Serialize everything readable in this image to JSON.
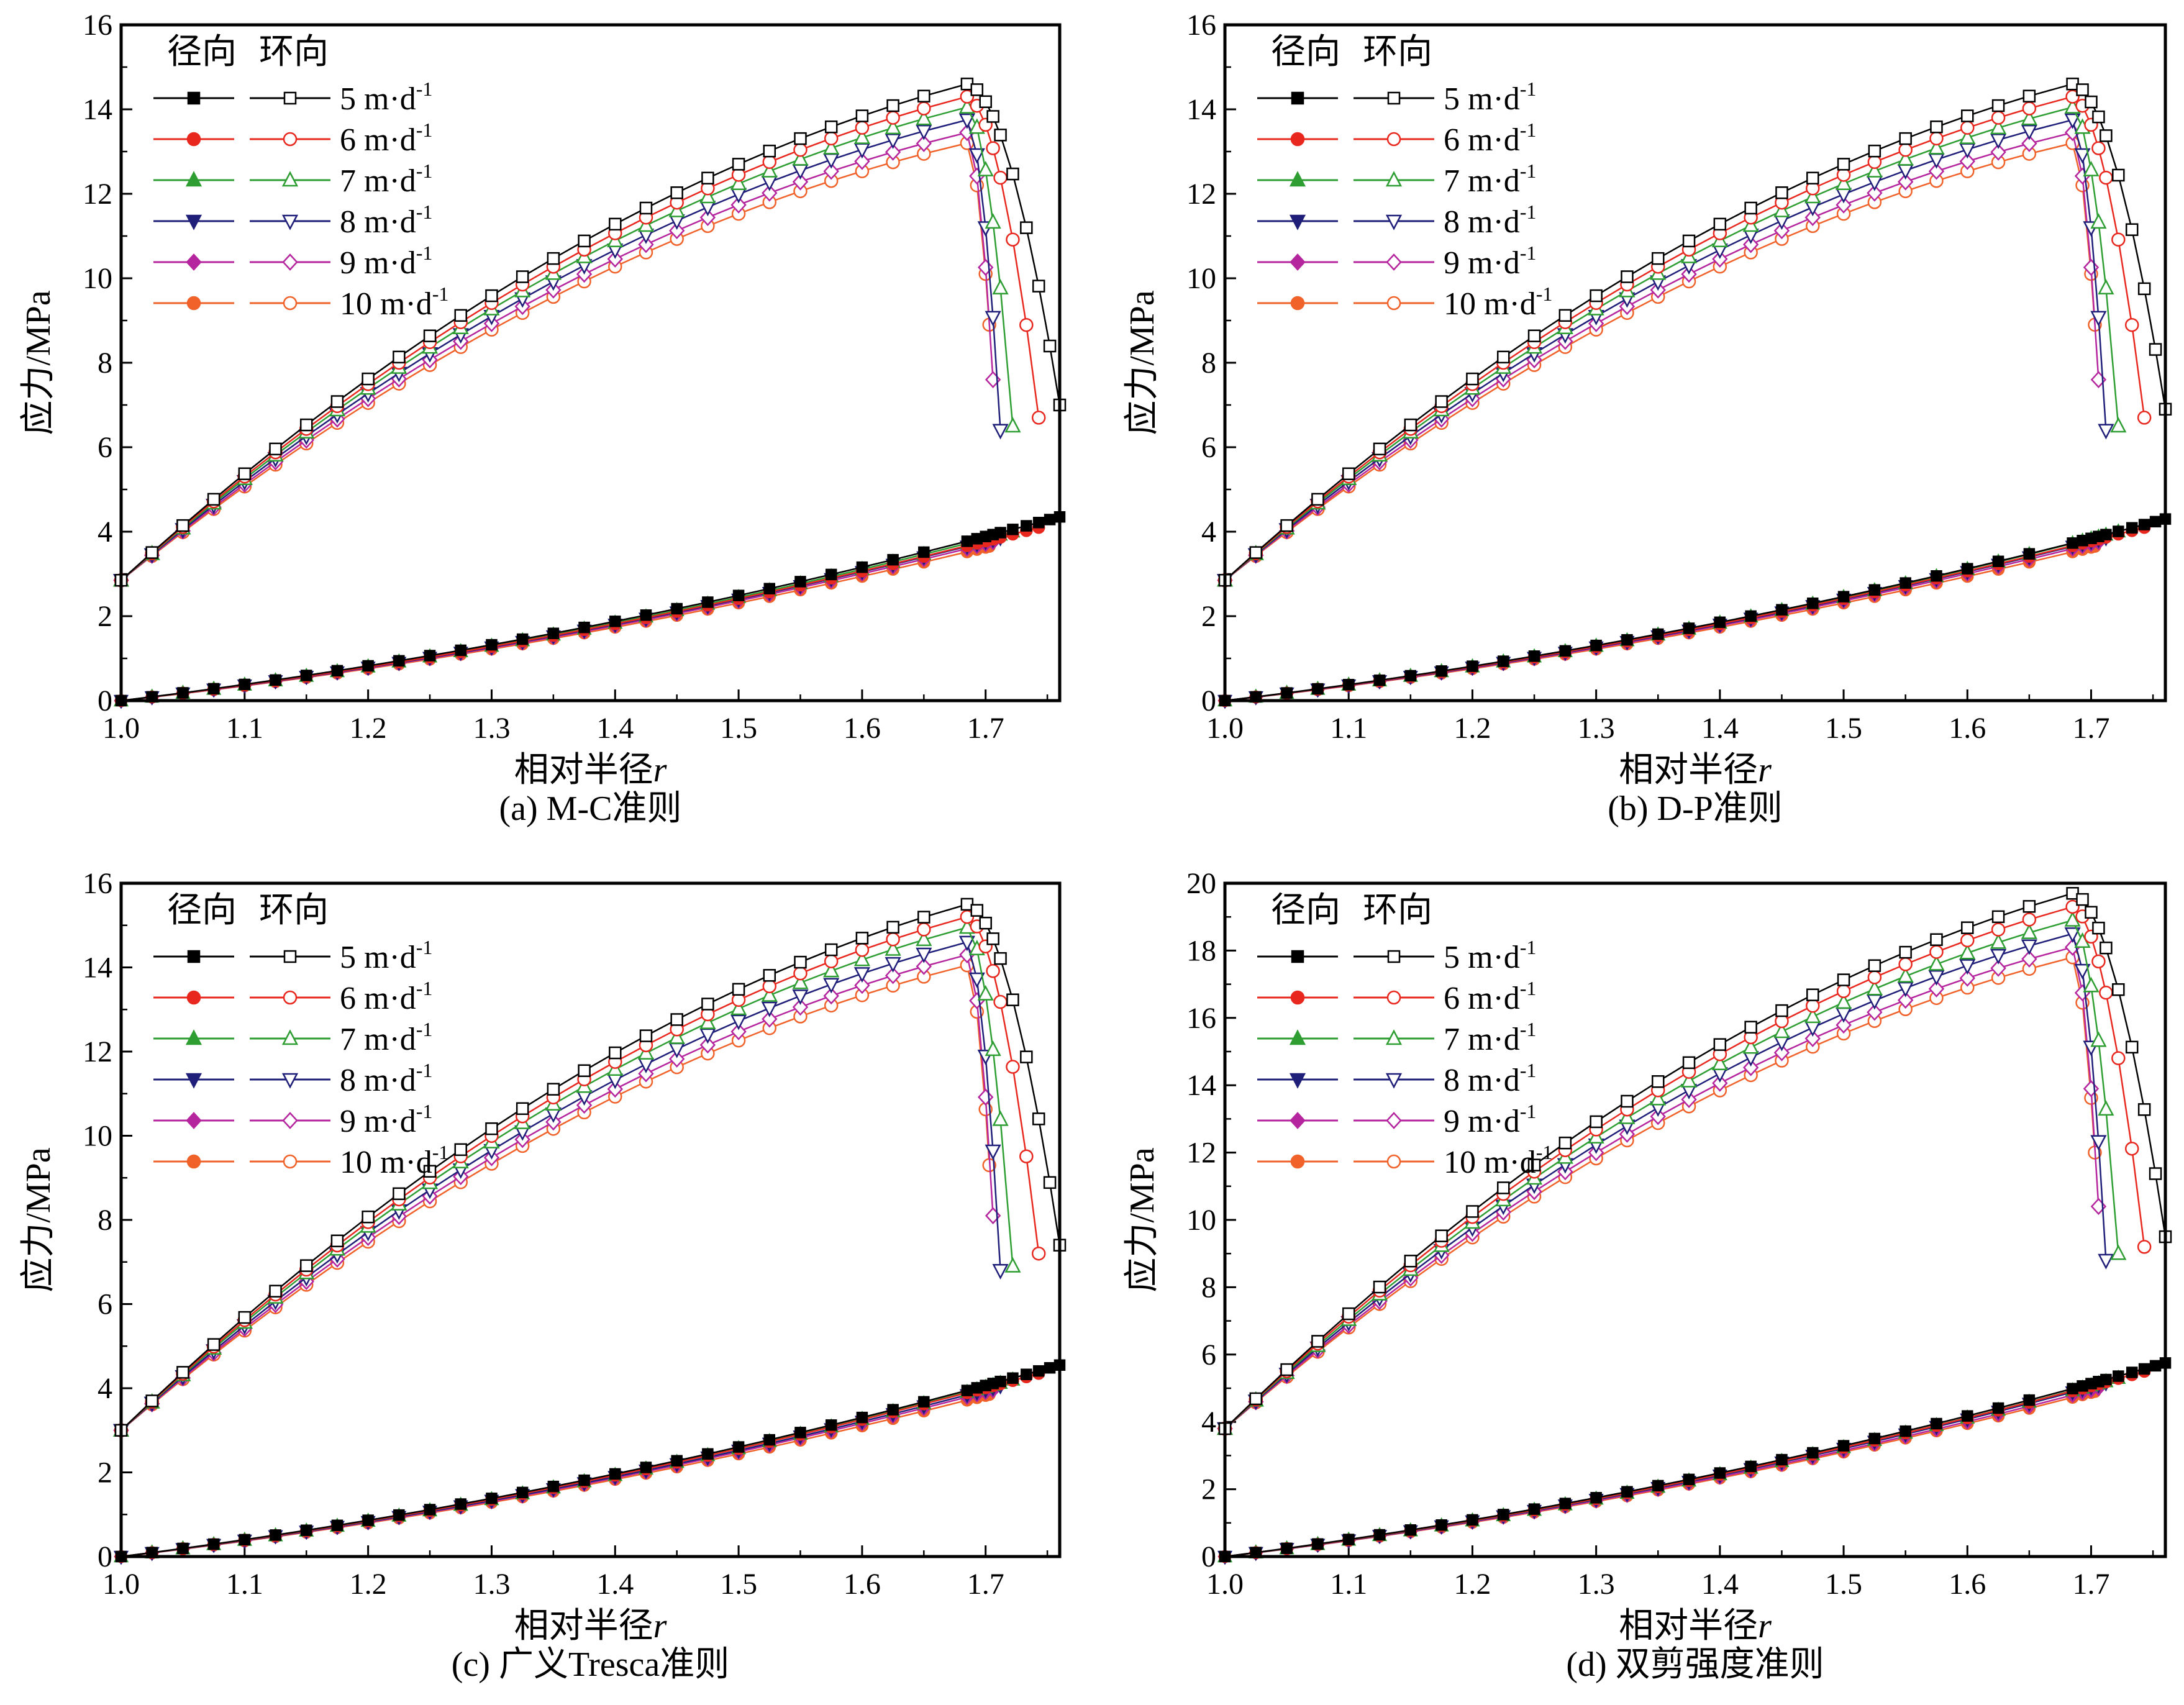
{
  "figure": {
    "legend_header": {
      "radial": "径向",
      "hoop": "环向"
    },
    "series": [
      {
        "label": "5 m·d",
        "sup": "-1",
        "color": "#000000",
        "marker": "square"
      },
      {
        "label": "6 m·d",
        "sup": "-1",
        "color": "#e8281e",
        "marker": "circle"
      },
      {
        "label": "7 m·d",
        "sup": "-1",
        "color": "#2e9e33",
        "marker": "triangle-up"
      },
      {
        "label": "8 m·d",
        "sup": "-1",
        "color": "#1f1f7a",
        "marker": "triangle-down"
      },
      {
        "label": "9 m·d",
        "sup": "-1",
        "color": "#b5259e",
        "marker": "diamond"
      },
      {
        "label": "10 m·d",
        "sup": "-1",
        "color": "#f0622a",
        "marker": "circle"
      }
    ]
  },
  "chart_data": [
    {
      "type": "line",
      "title": "(a) M-C准则",
      "xlabel": "相对半径",
      "xlabel_italic": "r",
      "ylabel": "应力/MPa",
      "xlim": [
        1.0,
        1.76
      ],
      "ylim": [
        0,
        16
      ],
      "xticks": [
        "1.0",
        "1.1",
        "1.2",
        "1.3",
        "1.4",
        "1.5",
        "1.6",
        "1.7"
      ],
      "yticks": [
        "0",
        "2",
        "4",
        "6",
        "8",
        "10",
        "12",
        "14",
        "16"
      ],
      "legend_position": "top-left",
      "hoop_start": 2.85,
      "hoop": [
        {
          "name": "5 m·d-1",
          "peak_r": 1.685,
          "peak": 14.6,
          "end_r": 1.76,
          "end": 7.0
        },
        {
          "name": "6 m·d-1",
          "peak_r": 1.685,
          "peak": 14.3,
          "end_r": 1.743,
          "end": 6.7
        },
        {
          "name": "7 m·d-1",
          "peak_r": 1.685,
          "peak": 14.05,
          "end_r": 1.722,
          "end": 6.5
        },
        {
          "name": "8 m·d-1",
          "peak_r": 1.685,
          "peak": 13.75,
          "end_r": 1.712,
          "end": 6.4
        },
        {
          "name": "9 m·d-1",
          "peak_r": 1.685,
          "peak": 13.45,
          "end_r": 1.706,
          "end": 7.6
        },
        {
          "name": "10 m·d-1",
          "peak_r": 1.685,
          "peak": 13.2,
          "end_r": 1.703,
          "end": 8.9
        }
      ],
      "radial": [
        {
          "name": "5 m·d-1",
          "end_r": 1.76,
          "end": 4.35
        },
        {
          "name": "6 m·d-1",
          "end_r": 1.743,
          "end": 4.1
        },
        {
          "name": "7 m·d-1",
          "end_r": 1.722,
          "end": 4.0
        },
        {
          "name": "8 m·d-1",
          "end_r": 1.712,
          "end": 3.85
        },
        {
          "name": "9 m·d-1",
          "end_r": 1.706,
          "end": 3.75
        },
        {
          "name": "10 m·d-1",
          "end_r": 1.703,
          "end": 3.65
        }
      ]
    },
    {
      "type": "line",
      "title": "(b) D-P准则",
      "xlabel": "相对半径",
      "xlabel_italic": "r",
      "ylabel": "应力/MPa",
      "xlim": [
        1.0,
        1.76
      ],
      "ylim": [
        0,
        16
      ],
      "xticks": [
        "1.0",
        "1.1",
        "1.2",
        "1.3",
        "1.4",
        "1.5",
        "1.6",
        "1.7"
      ],
      "yticks": [
        "0",
        "2",
        "4",
        "6",
        "8",
        "10",
        "12",
        "14",
        "16"
      ],
      "legend_position": "top-left",
      "hoop_start": 2.85,
      "hoop": [
        {
          "name": "5 m·d-1",
          "peak_r": 1.685,
          "peak": 14.6,
          "end_r": 1.76,
          "end": 6.9
        },
        {
          "name": "6 m·d-1",
          "peak_r": 1.685,
          "peak": 14.3,
          "end_r": 1.743,
          "end": 6.7
        },
        {
          "name": "7 m·d-1",
          "peak_r": 1.685,
          "peak": 14.05,
          "end_r": 1.722,
          "end": 6.5
        },
        {
          "name": "8 m·d-1",
          "peak_r": 1.685,
          "peak": 13.75,
          "end_r": 1.712,
          "end": 6.4
        },
        {
          "name": "9 m·d-1",
          "peak_r": 1.685,
          "peak": 13.45,
          "end_r": 1.706,
          "end": 7.6
        },
        {
          "name": "10 m·d-1",
          "peak_r": 1.685,
          "peak": 13.2,
          "end_r": 1.703,
          "end": 8.9
        }
      ],
      "radial": [
        {
          "name": "5 m·d-1",
          "end_r": 1.76,
          "end": 4.3
        },
        {
          "name": "6 m·d-1",
          "end_r": 1.743,
          "end": 4.1
        },
        {
          "name": "7 m·d-1",
          "end_r": 1.722,
          "end": 4.0
        },
        {
          "name": "8 m·d-1",
          "end_r": 1.712,
          "end": 3.85
        },
        {
          "name": "9 m·d-1",
          "end_r": 1.706,
          "end": 3.75
        },
        {
          "name": "10 m·d-1",
          "end_r": 1.703,
          "end": 3.65
        }
      ]
    },
    {
      "type": "line",
      "title": "(c) 广义Tresca准则",
      "xlabel": "相对半径",
      "xlabel_italic": "r",
      "ylabel": "应力/MPa",
      "xlim": [
        1.0,
        1.76
      ],
      "ylim": [
        0,
        16
      ],
      "xticks": [
        "1.0",
        "1.1",
        "1.2",
        "1.3",
        "1.4",
        "1.5",
        "1.6",
        "1.7"
      ],
      "yticks": [
        "0",
        "2",
        "4",
        "6",
        "8",
        "10",
        "12",
        "14",
        "16"
      ],
      "legend_position": "top-left",
      "hoop_start": 3.0,
      "hoop": [
        {
          "name": "5 m·d-1",
          "peak_r": 1.685,
          "peak": 15.5,
          "end_r": 1.76,
          "end": 7.4
        },
        {
          "name": "6 m·d-1",
          "peak_r": 1.685,
          "peak": 15.2,
          "end_r": 1.743,
          "end": 7.2
        },
        {
          "name": "7 m·d-1",
          "peak_r": 1.685,
          "peak": 14.95,
          "end_r": 1.722,
          "end": 6.9
        },
        {
          "name": "8 m·d-1",
          "peak_r": 1.685,
          "peak": 14.6,
          "end_r": 1.712,
          "end": 6.8
        },
        {
          "name": "9 m·d-1",
          "peak_r": 1.685,
          "peak": 14.3,
          "end_r": 1.706,
          "end": 8.1
        },
        {
          "name": "10 m·d-1",
          "peak_r": 1.685,
          "peak": 14.05,
          "end_r": 1.703,
          "end": 9.3
        }
      ],
      "radial": [
        {
          "name": "5 m·d-1",
          "end_r": 1.76,
          "end": 4.55
        },
        {
          "name": "6 m·d-1",
          "end_r": 1.743,
          "end": 4.35
        },
        {
          "name": "7 m·d-1",
          "end_r": 1.722,
          "end": 4.2
        },
        {
          "name": "8 m·d-1",
          "end_r": 1.712,
          "end": 4.05
        },
        {
          "name": "9 m·d-1",
          "end_r": 1.706,
          "end": 3.95
        },
        {
          "name": "10 m·d-1",
          "end_r": 1.703,
          "end": 3.85
        }
      ]
    },
    {
      "type": "line",
      "title": "(d) 双剪强度准则",
      "xlabel": "相对半径",
      "xlabel_italic": "r",
      "ylabel": "应力/MPa",
      "xlim": [
        1.0,
        1.76
      ],
      "ylim": [
        0,
        20
      ],
      "xticks": [
        "1.0",
        "1.1",
        "1.2",
        "1.3",
        "1.4",
        "1.5",
        "1.6",
        "1.7"
      ],
      "yticks": [
        "0",
        "2",
        "4",
        "6",
        "8",
        "10",
        "12",
        "14",
        "16",
        "18",
        "20"
      ],
      "legend_position": "top-left",
      "hoop_start": 3.8,
      "hoop": [
        {
          "name": "5 m·d-1",
          "peak_r": 1.685,
          "peak": 19.7,
          "end_r": 1.76,
          "end": 9.5
        },
        {
          "name": "6 m·d-1",
          "peak_r": 1.685,
          "peak": 19.3,
          "end_r": 1.743,
          "end": 9.2
        },
        {
          "name": "7 m·d-1",
          "peak_r": 1.685,
          "peak": 18.9,
          "end_r": 1.722,
          "end": 9.0
        },
        {
          "name": "8 m·d-1",
          "peak_r": 1.685,
          "peak": 18.5,
          "end_r": 1.712,
          "end": 8.8
        },
        {
          "name": "9 m·d-1",
          "peak_r": 1.685,
          "peak": 18.1,
          "end_r": 1.706,
          "end": 10.4
        },
        {
          "name": "10 m·d-1",
          "peak_r": 1.685,
          "peak": 17.8,
          "end_r": 1.703,
          "end": 12.0
        }
      ],
      "radial": [
        {
          "name": "5 m·d-1",
          "end_r": 1.76,
          "end": 5.75
        },
        {
          "name": "6 m·d-1",
          "end_r": 1.743,
          "end": 5.5
        },
        {
          "name": "7 m·d-1",
          "end_r": 1.722,
          "end": 5.3
        },
        {
          "name": "8 m·d-1",
          "end_r": 1.712,
          "end": 5.15
        },
        {
          "name": "9 m·d-1",
          "end_r": 1.706,
          "end": 5.0
        },
        {
          "name": "10 m·d-1",
          "end_r": 1.703,
          "end": 4.9
        }
      ]
    }
  ]
}
